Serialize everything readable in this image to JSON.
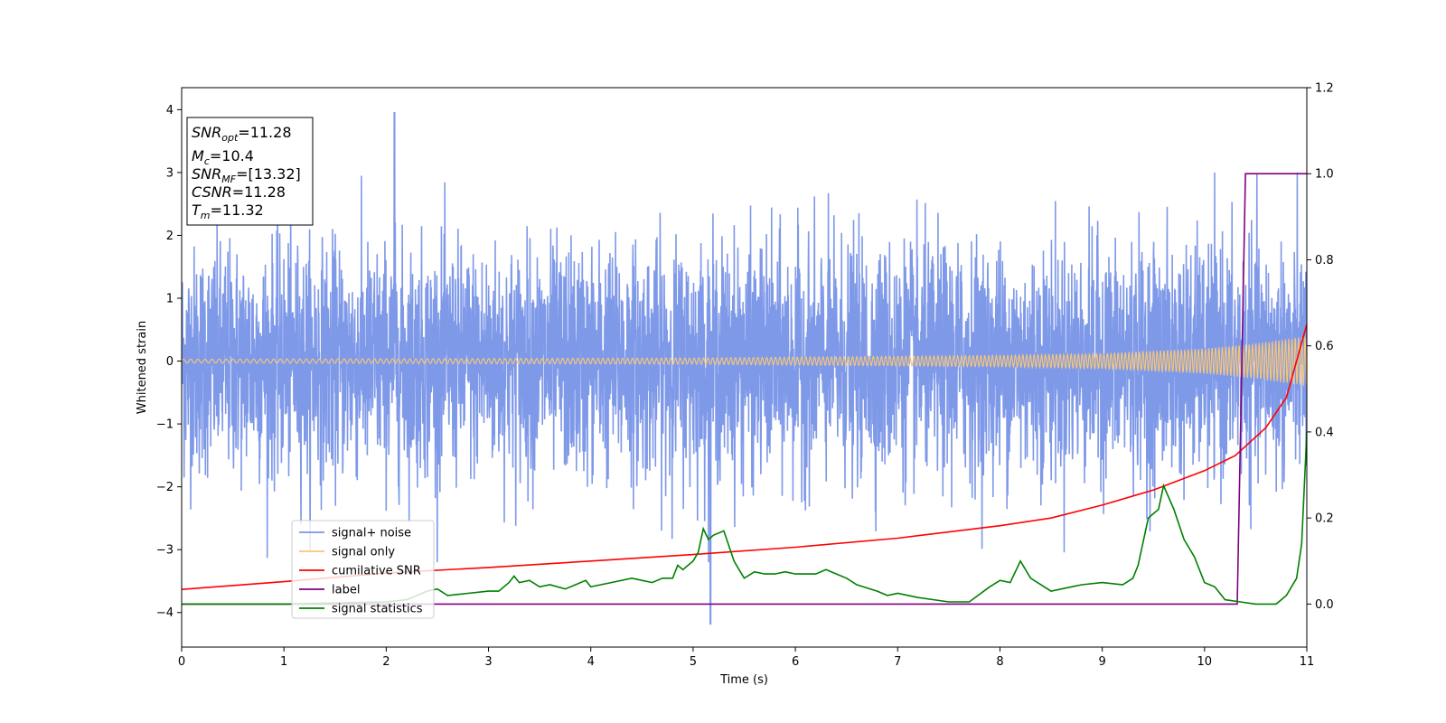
{
  "chart_data": {
    "type": "line",
    "xlabel": "Time (s)",
    "ylabel": "Whitened strain",
    "xlim": [
      0,
      11
    ],
    "ylim_left": [
      -4.55,
      4.35
    ],
    "ylim_right": [
      -0.1,
      1.2
    ],
    "x_ticks": [
      0,
      1,
      2,
      3,
      4,
      5,
      6,
      7,
      8,
      9,
      10,
      11
    ],
    "y_left_ticks": [
      -4,
      -3,
      -2,
      -1,
      0,
      1,
      2,
      3,
      4
    ],
    "y_right_ticks": [
      0.0,
      0.2,
      0.4,
      0.6,
      0.8,
      1.0,
      1.2
    ],
    "y_left_tick_labels": [
      "−4",
      "−3",
      "−2",
      "−1",
      "0",
      "1",
      "2",
      "3",
      "4"
    ],
    "y_right_tick_labels": [
      "0.0",
      "0.2",
      "0.4",
      "0.6",
      "0.8",
      "1.0",
      "1.2"
    ],
    "grid": false,
    "legend_position": "lower-left",
    "series": [
      {
        "name": "signal+ noise",
        "color": "#7894e8",
        "axis": "left",
        "style": "noise",
        "description_values": {
          "typical_range": [
            -2.2,
            2.2
          ],
          "max_peak": 3.95,
          "max_peak_x": 2.08,
          "min_peak": -4.18,
          "min_peak_x": 5.17
        }
      },
      {
        "name": "signal only",
        "color": "#f7c777",
        "axis": "left",
        "style": "chirp",
        "envelope": {
          "x": [
            0,
            5,
            8,
            9,
            10,
            10.5,
            11
          ],
          "amp": [
            0.03,
            0.05,
            0.09,
            0.12,
            0.2,
            0.28,
            0.4
          ]
        }
      },
      {
        "name": "cumilative SNR",
        "color": "#ff0000",
        "axis": "right",
        "x": [
          0,
          1,
          2,
          3,
          4,
          5,
          6,
          7,
          8,
          8.5,
          9,
          9.5,
          10,
          10.3,
          10.6,
          10.8,
          11
        ],
        "y": [
          0.034,
          0.052,
          0.072,
          0.085,
          0.1,
          0.115,
          0.132,
          0.153,
          0.182,
          0.2,
          0.23,
          0.265,
          0.31,
          0.345,
          0.41,
          0.48,
          0.65
        ]
      },
      {
        "name": "label",
        "color": "#800080",
        "axis": "right",
        "x": [
          0,
          10.32,
          10.4,
          11
        ],
        "y": [
          0.0,
          0.0,
          1.0,
          1.0
        ]
      },
      {
        "name": "signal statistics",
        "color": "#008000",
        "axis": "right",
        "x": [
          0,
          1,
          2,
          2.2,
          2.4,
          2.5,
          2.6,
          2.8,
          3.0,
          3.1,
          3.2,
          3.25,
          3.3,
          3.4,
          3.5,
          3.6,
          3.75,
          3.85,
          3.95,
          4.0,
          4.2,
          4.4,
          4.5,
          4.6,
          4.7,
          4.8,
          4.85,
          4.9,
          5.0,
          5.05,
          5.1,
          5.15,
          5.2,
          5.3,
          5.4,
          5.45,
          5.5,
          5.6,
          5.7,
          5.8,
          5.9,
          6.0,
          6.2,
          6.3,
          6.4,
          6.5,
          6.6,
          6.8,
          6.9,
          7.0,
          7.2,
          7.5,
          7.7,
          7.9,
          8.0,
          8.1,
          8.2,
          8.3,
          8.5,
          8.7,
          8.8,
          9.0,
          9.2,
          9.3,
          9.35,
          9.45,
          9.5,
          9.55,
          9.6,
          9.7,
          9.8,
          9.9,
          10.0,
          10.1,
          10.2,
          10.35,
          10.5,
          10.7,
          10.8,
          10.9,
          10.95,
          11.0
        ],
        "y": [
          0.0,
          0.0,
          0.005,
          0.01,
          0.03,
          0.035,
          0.02,
          0.025,
          0.03,
          0.03,
          0.05,
          0.065,
          0.05,
          0.055,
          0.04,
          0.045,
          0.035,
          0.045,
          0.055,
          0.04,
          0.05,
          0.06,
          0.055,
          0.05,
          0.06,
          0.06,
          0.09,
          0.08,
          0.1,
          0.12,
          0.175,
          0.15,
          0.16,
          0.17,
          0.1,
          0.08,
          0.06,
          0.075,
          0.07,
          0.07,
          0.075,
          0.07,
          0.07,
          0.08,
          0.07,
          0.06,
          0.045,
          0.03,
          0.02,
          0.025,
          0.015,
          0.005,
          0.005,
          0.04,
          0.055,
          0.05,
          0.1,
          0.06,
          0.03,
          0.04,
          0.045,
          0.05,
          0.045,
          0.06,
          0.09,
          0.2,
          0.21,
          0.22,
          0.275,
          0.22,
          0.15,
          0.11,
          0.05,
          0.04,
          0.01,
          0.005,
          0.0,
          0.0,
          0.02,
          0.06,
          0.14,
          0.4
        ]
      }
    ]
  },
  "info_box": {
    "line1_sym": "SNR",
    "line1_sub": "opt",
    "line1_val": "=11.28",
    "line2_sym": "M",
    "line2_sub": "c",
    "line2_val": "=10.4",
    "line3_sym": "SNR",
    "line3_sub": "MF",
    "line3_val": "=[13.32]",
    "line4_sym": "CSNR",
    "line4_val": "=11.28",
    "line5_sym": "T",
    "line5_sub": "m",
    "line5_val": "=11.32"
  }
}
